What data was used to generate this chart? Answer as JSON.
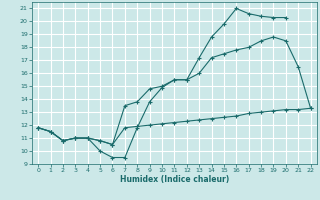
{
  "title": "",
  "xlabel": "Humidex (Indice chaleur)",
  "bg_color": "#cce8e8",
  "grid_color": "#ffffff",
  "line_color": "#1a6b6b",
  "xlim": [
    -0.5,
    22.5
  ],
  "ylim": [
    9,
    21.5
  ],
  "xticks": [
    0,
    1,
    2,
    3,
    4,
    5,
    6,
    7,
    8,
    9,
    10,
    11,
    12,
    13,
    14,
    15,
    16,
    17,
    18,
    19,
    20,
    21,
    22
  ],
  "yticks": [
    9,
    10,
    11,
    12,
    13,
    14,
    15,
    16,
    17,
    18,
    19,
    20,
    21
  ],
  "line1_x": [
    0,
    1,
    2,
    3,
    4,
    5,
    6,
    7,
    8,
    9,
    10,
    11,
    12,
    13,
    14,
    15,
    16,
    17,
    18,
    19,
    20
  ],
  "line1_y": [
    11.8,
    11.5,
    10.8,
    11.0,
    11.0,
    10.0,
    9.5,
    9.5,
    11.8,
    13.8,
    14.9,
    15.5,
    15.5,
    17.2,
    18.8,
    19.8,
    21.0,
    20.6,
    20.4,
    20.3,
    20.3
  ],
  "line2_x": [
    0,
    1,
    2,
    3,
    4,
    5,
    6,
    7,
    8,
    9,
    10,
    11,
    12,
    13,
    14,
    15,
    16,
    17,
    18,
    19,
    20,
    21,
    22
  ],
  "line2_y": [
    11.8,
    11.5,
    10.8,
    11.0,
    11.0,
    10.8,
    10.5,
    13.5,
    13.8,
    14.8,
    15.0,
    15.5,
    15.5,
    16.0,
    17.2,
    17.5,
    17.8,
    18.0,
    18.5,
    18.8,
    18.5,
    16.5,
    13.3
  ],
  "line3_x": [
    0,
    1,
    2,
    3,
    4,
    5,
    6,
    7,
    8,
    9,
    10,
    11,
    12,
    13,
    14,
    15,
    16,
    17,
    18,
    19,
    20,
    21,
    22
  ],
  "line3_y": [
    11.8,
    11.5,
    10.8,
    11.0,
    11.0,
    10.8,
    10.5,
    11.8,
    11.9,
    12.0,
    12.1,
    12.2,
    12.3,
    12.4,
    12.5,
    12.6,
    12.7,
    12.9,
    13.0,
    13.1,
    13.2,
    13.2,
    13.3
  ]
}
